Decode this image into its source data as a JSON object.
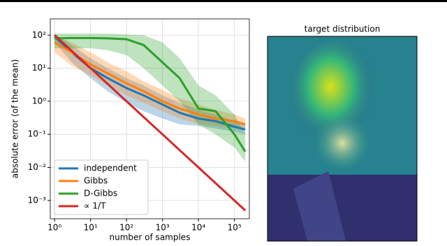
{
  "chart_data": [
    {
      "type": "line",
      "xlabel": "number of samples",
      "ylabel": "absolute error (of the mean)",
      "log_x": true,
      "log_y": true,
      "grid": true,
      "legend": "lower left",
      "x": [
        1,
        3,
        10,
        30,
        100,
        300,
        1000,
        3000,
        10000,
        30000,
        100000,
        200000
      ],
      "series": [
        {
          "name": "independent",
          "color": "#1f77b4",
          "values": [
            90,
            30,
            10,
            5,
            2.5,
            1.5,
            0.8,
            0.45,
            0.3,
            0.25,
            0.17,
            0.14
          ],
          "lower": [
            60,
            15,
            5,
            2,
            0.9,
            0.5,
            0.3,
            0.2,
            0.18,
            0.15,
            0.12,
            0.1
          ],
          "upper": [
            110,
            50,
            20,
            10,
            5,
            3,
            1.5,
            0.9,
            0.55,
            0.4,
            0.25,
            0.2
          ]
        },
        {
          "name": "Gibbs",
          "color": "#ff7f0e",
          "values": [
            60,
            30,
            13,
            7,
            3.5,
            2,
            1,
            0.6,
            0.4,
            0.3,
            0.25,
            0.2
          ],
          "lower": [
            30,
            12,
            6,
            3,
            1.5,
            0.9,
            0.5,
            0.3,
            0.2,
            0.18,
            0.15,
            0.13
          ],
          "upper": [
            100,
            60,
            30,
            15,
            8,
            4,
            2.2,
            1.2,
            0.8,
            0.55,
            0.4,
            0.3
          ]
        },
        {
          "name": "D-Gibbs",
          "color": "#2ca02c",
          "values": [
            80,
            82,
            82,
            80,
            75,
            50,
            15,
            5,
            0.6,
            0.5,
            0.1,
            0.03
          ],
          "lower": [
            40,
            40,
            40,
            35,
            25,
            10,
            3,
            1,
            0.2,
            0.1,
            0.04,
            0.015
          ],
          "upper": [
            110,
            110,
            110,
            110,
            105,
            100,
            60,
            20,
            3,
            1.5,
            0.4,
            0.1
          ]
        },
        {
          "name": "∝ 1/T",
          "color": "#d62728",
          "values": [
            100,
            33.3,
            10,
            3.33,
            1,
            0.333,
            0.1,
            0.0333,
            0.01,
            0.00333,
            0.001,
            0.0005
          ]
        }
      ],
      "xlim": [
        0.76,
        260000
      ],
      "ylim": [
        0.00028,
        310
      ],
      "xticks": [
        {
          "value": 1,
          "label": "10⁰"
        },
        {
          "value": 10,
          "label": "10¹"
        },
        {
          "value": 100,
          "label": "10²"
        },
        {
          "value": 1000,
          "label": "10³"
        },
        {
          "value": 10000,
          "label": "10⁴"
        },
        {
          "value": 100000,
          "label": "10⁵"
        }
      ],
      "yticks": [
        {
          "value": 0.001,
          "label": "10⁻³"
        },
        {
          "value": 0.01,
          "label": "10⁻²"
        },
        {
          "value": 0.1,
          "label": "10⁻¹"
        },
        {
          "value": 1,
          "label": "10⁰"
        },
        {
          "value": 10,
          "label": "10¹"
        },
        {
          "value": 100,
          "label": "10²"
        }
      ]
    },
    {
      "type": "image",
      "title": "target distribution"
    }
  ]
}
